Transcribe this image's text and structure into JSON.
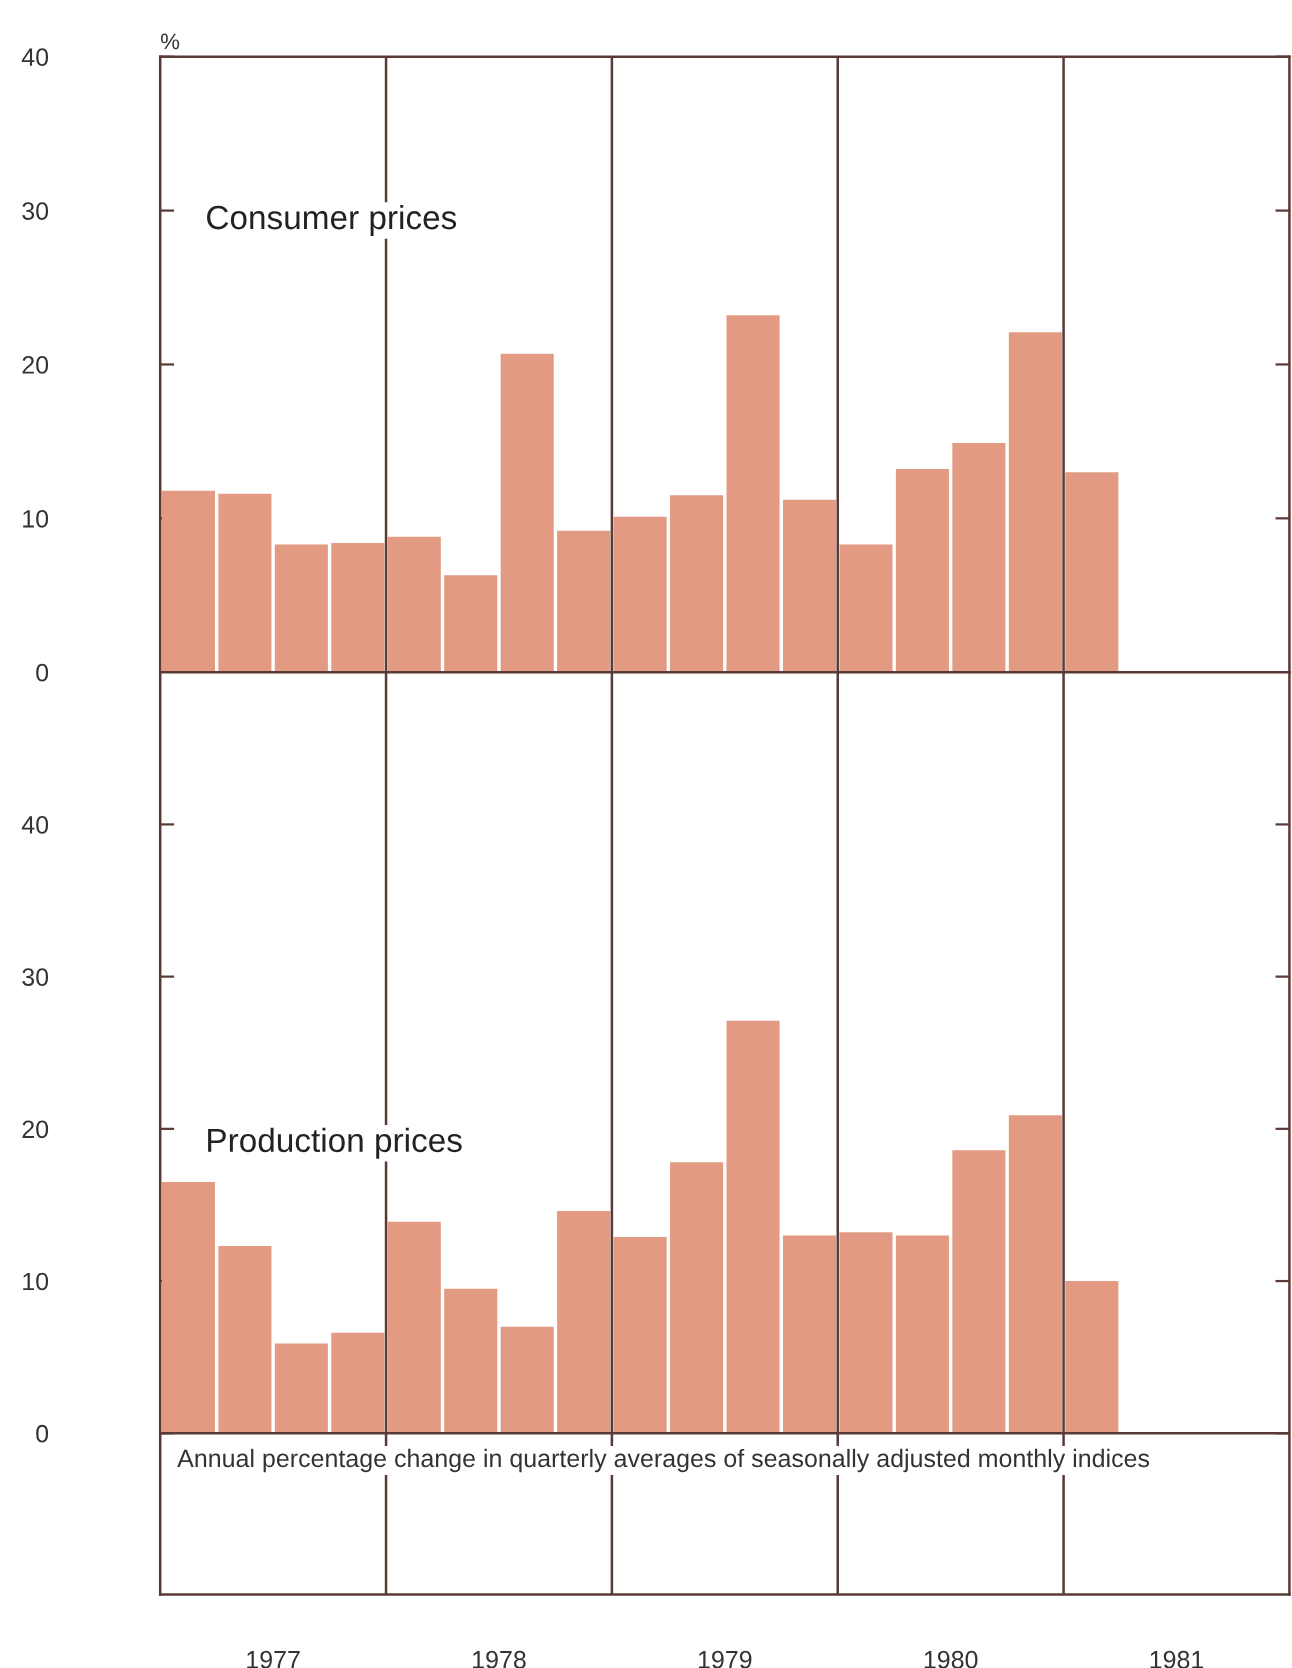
{
  "chart_data": [
    {
      "type": "bar",
      "title": "Consumer prices",
      "ylabel": "%",
      "x": [
        1977.125,
        1977.375,
        1977.625,
        1977.875,
        1978.125,
        1978.375,
        1978.625,
        1978.875,
        1979.125,
        1979.375,
        1979.625,
        1979.875,
        1980.125,
        1980.375,
        1980.625,
        1980.875,
        1981.125
      ],
      "values": [
        11.8,
        11.6,
        8.3,
        8.4,
        8.8,
        6.3,
        20.7,
        9.2,
        10.1,
        11.5,
        23.2,
        11.2,
        8.3,
        13.2,
        14.9,
        22.1,
        13.0
      ],
      "color": "#e29a82",
      "xlim": [
        1977,
        1982
      ],
      "ylim": [
        0,
        40
      ],
      "yticks": [
        0,
        10,
        20,
        30,
        40
      ],
      "ref_lines": [
        {
          "axis": "x",
          "value": 1978,
          "color": "#5a3a36"
        },
        {
          "axis": "x",
          "value": 1979,
          "color": "#5a3a36"
        },
        {
          "axis": "x",
          "value": 1980,
          "color": "#5a3a36"
        },
        {
          "axis": "x",
          "value": 1981,
          "color": "#5a3a36"
        }
      ],
      "tick_labels": "y"
    },
    {
      "type": "bar",
      "title": "Production prices",
      "x": [
        1977.125,
        1977.375,
        1977.625,
        1977.875,
        1978.125,
        1978.375,
        1978.625,
        1978.875,
        1979.125,
        1979.375,
        1979.625,
        1979.875,
        1980.125,
        1980.375,
        1980.625,
        1980.875,
        1981.125
      ],
      "values": [
        16.5,
        12.3,
        5.9,
        6.6,
        13.9,
        9.5,
        7.0,
        14.6,
        12.9,
        17.8,
        27.1,
        13.0,
        13.2,
        13.0,
        18.6,
        20.9,
        10.0
      ],
      "color": "#e29a82",
      "xlim": [
        1977,
        1982
      ],
      "ylim": [
        -10.6,
        50
      ],
      "yticks": [
        0,
        10,
        20,
        30,
        40
      ],
      "xticks": [
        {
          "value": 1977.5,
          "label": "1977"
        },
        {
          "value": 1978.5,
          "label": "1978"
        },
        {
          "value": 1979.5,
          "label": "1979"
        },
        {
          "value": 1980.5,
          "label": "1980"
        },
        {
          "value": 1981.5,
          "label": "1981"
        }
      ],
      "ref_lines": [
        {
          "axis": "y",
          "value": 0,
          "color": "#5a3a36"
        },
        {
          "axis": "x",
          "value": 1978,
          "color": "#5a3a36"
        },
        {
          "axis": "x",
          "value": 1979,
          "color": "#5a3a36"
        },
        {
          "axis": "x",
          "value": 1980,
          "color": "#5a3a36"
        },
        {
          "axis": "x",
          "value": 1981,
          "color": "#5a3a36"
        }
      ],
      "annotations": [
        "Annual percentage change in quarterly averages of seasonally adjusted monthly indices"
      ]
    }
  ]
}
